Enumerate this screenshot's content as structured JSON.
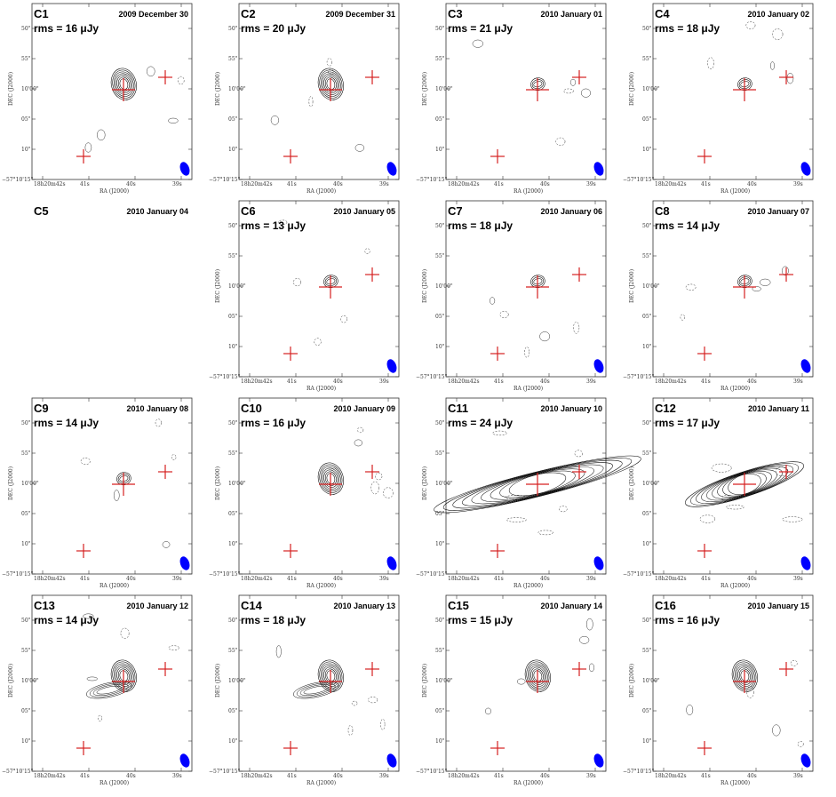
{
  "figure": {
    "colors": {
      "source_marker": "#d62020",
      "beam": "#0000ff",
      "contour": "#000000",
      "frame": "#333333"
    },
    "axes": {
      "xlabel": "RA (J2000)",
      "ylabel": "DEC (J2000)",
      "x_ticks": [
        "18h20m42s",
        "41s",
        "40s",
        "39s"
      ],
      "x_ticks_alt": [
        "42s0",
        "41s0",
        "40s0",
        "39s0"
      ],
      "y_ticks": [
        "50\"",
        "55\"",
        "10'00\"",
        "05\"",
        "10\"",
        "−57°10'15\""
      ]
    },
    "panels": [
      {
        "id": "C1",
        "date": "2009 December 30",
        "rms": "rms = 16 μJy",
        "observed": true
      },
      {
        "id": "C2",
        "date": "2009 December 31",
        "rms": "rms = 20 μJy",
        "observed": true
      },
      {
        "id": "C3",
        "date": "2010 January 01",
        "rms": "rms = 21 μJy",
        "observed": true
      },
      {
        "id": "C4",
        "date": "2010 January 02",
        "rms": "rms = 18 μJy",
        "observed": true
      },
      {
        "id": "C5",
        "date": "2010 January 04",
        "rms": "",
        "observed": false
      },
      {
        "id": "C6",
        "date": "2010 January 05",
        "rms": "rms = 13 μJy",
        "observed": true
      },
      {
        "id": "C7",
        "date": "2010 January 06",
        "rms": "rms = 18 μJy",
        "observed": true
      },
      {
        "id": "C8",
        "date": "2010 January 07",
        "rms": "rms = 14 μJy",
        "observed": true
      },
      {
        "id": "C9",
        "date": "2010 January 08",
        "rms": "rms = 14 μJy",
        "observed": true
      },
      {
        "id": "C10",
        "date": "2010 January 09",
        "rms": "rms = 16 μJy",
        "observed": true
      },
      {
        "id": "C11",
        "date": "2010 January 10",
        "rms": "rms = 24 μJy",
        "observed": true
      },
      {
        "id": "C12",
        "date": "2010 January 11",
        "rms": "rms = 17 μJy",
        "observed": true
      },
      {
        "id": "C13",
        "date": "2010 January 12",
        "rms": "rms = 14 μJy",
        "observed": true
      },
      {
        "id": "C14",
        "date": "2010 January 13",
        "rms": "rms = 18 μJy",
        "observed": true
      },
      {
        "id": "C15",
        "date": "2010 January 14",
        "rms": "rms = 15 μJy",
        "observed": true
      },
      {
        "id": "C16",
        "date": "2010 January 15",
        "rms": "rms = 16 μJy",
        "observed": true
      }
    ]
  }
}
